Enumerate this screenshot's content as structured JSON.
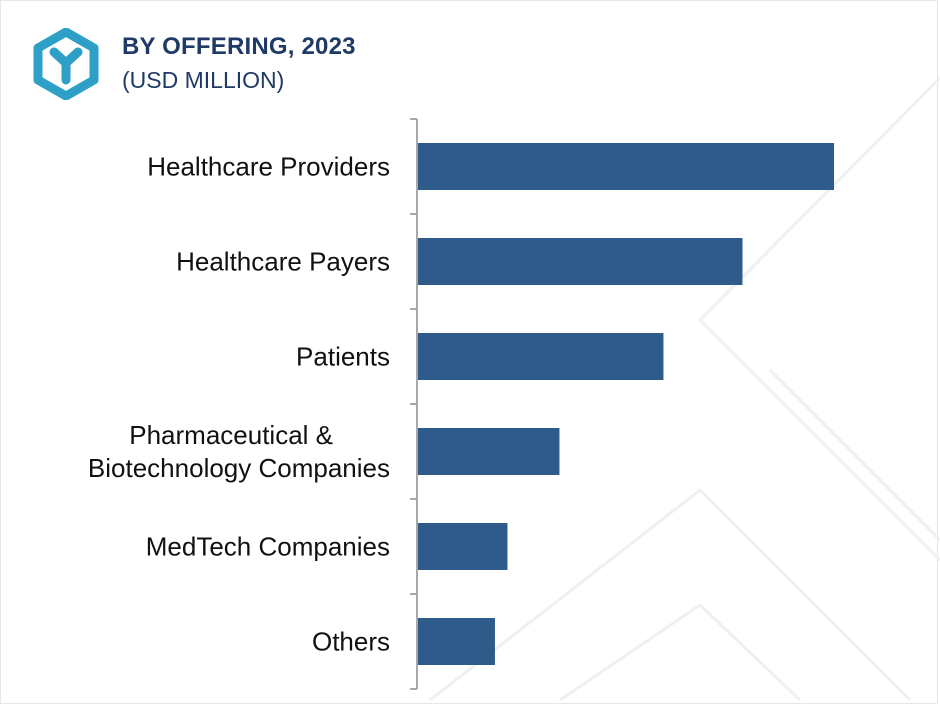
{
  "title": "BY OFFERING, 2023",
  "subtitle": "(USD MILLION)",
  "colors": {
    "bar": "#2e5b8a",
    "title": "#1f3a66",
    "logo": "#2e9fc7",
    "axis": "#a8a8a8",
    "watermark": "#eef0f3"
  },
  "icons": {
    "logo": "hexagon-y-logo-icon"
  },
  "chart_data": {
    "type": "bar",
    "orientation": "horizontal",
    "title": "BY OFFERING, 2023",
    "subtitle": "(USD MILLION)",
    "categories": [
      [
        "Healthcare Providers"
      ],
      [
        "Healthcare Payers"
      ],
      [
        "Patients"
      ],
      [
        "Pharmaceutical &",
        "Biotechnology Companies"
      ],
      [
        "MedTech Companies"
      ],
      [
        "Others"
      ]
    ],
    "values": [
      100,
      78,
      59,
      34,
      21.5,
      18.5
    ],
    "xlim": [
      0,
      100
    ],
    "value_axis_labels": false,
    "grid": false,
    "legend": "none"
  }
}
